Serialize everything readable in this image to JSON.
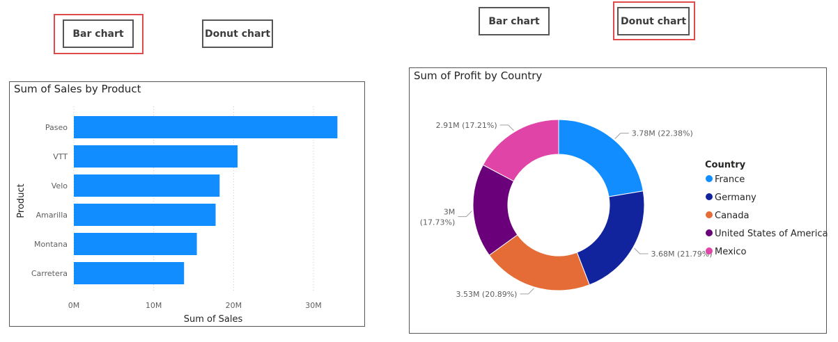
{
  "toggles": {
    "left": {
      "bar": "Bar chart",
      "donut": "Donut chart",
      "selected": "bar"
    },
    "right": {
      "bar": "Bar chart",
      "donut": "Donut chart",
      "selected": "donut"
    }
  },
  "chart_data": [
    {
      "type": "bar",
      "orientation": "horizontal",
      "title": "Sum of Sales by Product",
      "xlabel": "Sum of Sales",
      "ylabel": "Product",
      "categories": [
        "Paseo",
        "VTT",
        "Velo",
        "Amarilla",
        "Montana",
        "Carretera"
      ],
      "values": [
        33.0,
        20.5,
        18.25,
        17.75,
        15.4,
        13.8
      ],
      "xlim": [
        0,
        35
      ],
      "xticks": [
        0,
        10,
        20,
        30
      ],
      "xtick_labels": [
        "0M",
        "10M",
        "20M",
        "30M"
      ],
      "grid": "vertical dotted",
      "color": "#118DFF"
    },
    {
      "type": "pie",
      "style": "donut",
      "title": "Sum of Profit by Country",
      "legend_title": "Country",
      "legend_position": "right",
      "series": [
        {
          "name": "France",
          "value": 3.78,
          "label": "3.78M (22.38%)",
          "color": "#118DFF"
        },
        {
          "name": "Germany",
          "value": 3.68,
          "label": "3.68M (21.79%)",
          "color": "#12239E"
        },
        {
          "name": "Canada",
          "value": 3.53,
          "label": "3.53M (20.89%)",
          "color": "#E66C37"
        },
        {
          "name": "United States of America",
          "value": 3.0,
          "label_lines": [
            "3M",
            "(17.73%)"
          ],
          "color": "#6B007B"
        },
        {
          "name": "Mexico",
          "value": 2.91,
          "label": "2.91M (17.21%)",
          "color": "#E044A7"
        }
      ]
    }
  ]
}
